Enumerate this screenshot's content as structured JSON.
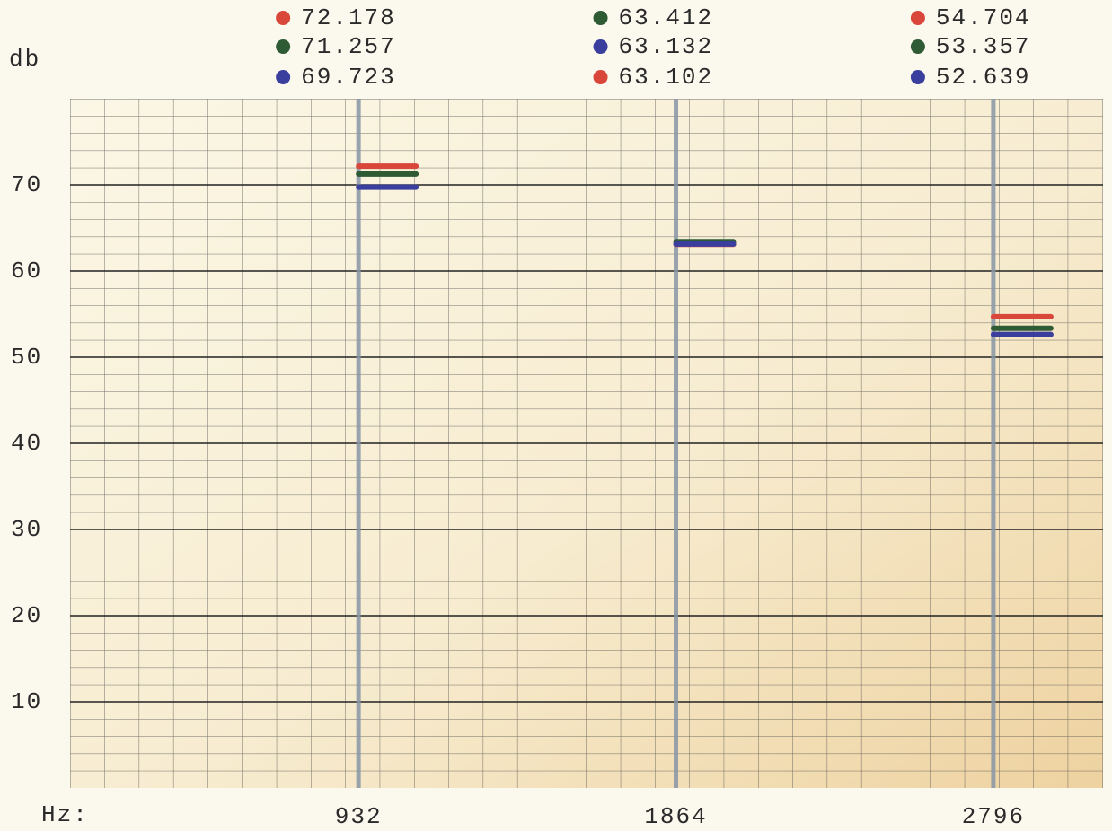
{
  "chart_data": {
    "type": "marker",
    "y_label": "db",
    "x_label": "Hz:",
    "x": [
      932,
      1864,
      2796
    ],
    "series": [
      {
        "color": "#d9463a",
        "values": [
          72.178,
          63.102,
          54.704
        ]
      },
      {
        "color": "#2e5a34",
        "values": [
          71.257,
          63.412,
          53.357
        ]
      },
      {
        "color": "#3a3f9e",
        "values": [
          69.723,
          63.132,
          52.639
        ]
      }
    ],
    "xlim": [
      85,
      3118
    ],
    "xticks": [
      932,
      1864,
      2796
    ],
    "ylim": [
      0,
      80
    ],
    "yticks": [
      10,
      20,
      30,
      40,
      50,
      60,
      70
    ],
    "grid": true
  }
}
